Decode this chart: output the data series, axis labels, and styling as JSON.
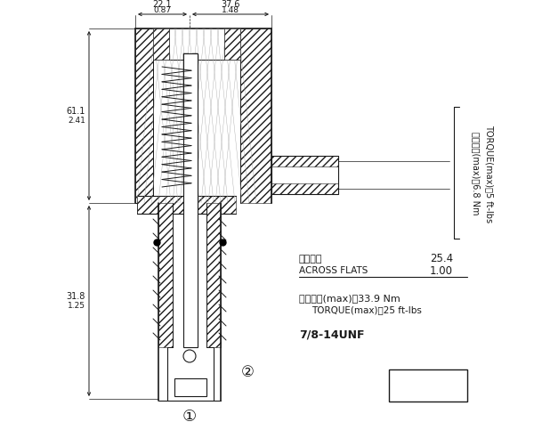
{
  "bg_color": "#ffffff",
  "line_color": "#1a1a1a",
  "annotations": {
    "dim_top_left_mm": "22.1",
    "dim_top_left_inch": "0.87",
    "dim_top_right_mm": "37.6",
    "dim_top_right_inch": "1.48",
    "dim_left_upper_mm": "61.1",
    "dim_left_upper_inch": "2.41",
    "dim_left_lower_mm": "31.8",
    "dim_left_lower_inch": "1.25",
    "across_flats_label_zh": "對邊寬度",
    "across_flats_label_en": "ACROSS FLATS",
    "across_flats_mm": "25.4",
    "across_flats_inch": "1.00",
    "torque_upper_zh": "安裝扭矩(max)：6.8 Nm",
    "torque_upper_en": "TORQUE(max)：5 ft-lbs",
    "torque_lower_zh": "安裝扭矩(max)：33.9 Nm",
    "torque_lower_en": "TORQUE(max)：25 ft-lbs",
    "thread": "7/8-14UNF",
    "circle1": "①",
    "circle2": "②"
  },
  "figsize": [
    6.0,
    4.83
  ],
  "dpi": 100
}
